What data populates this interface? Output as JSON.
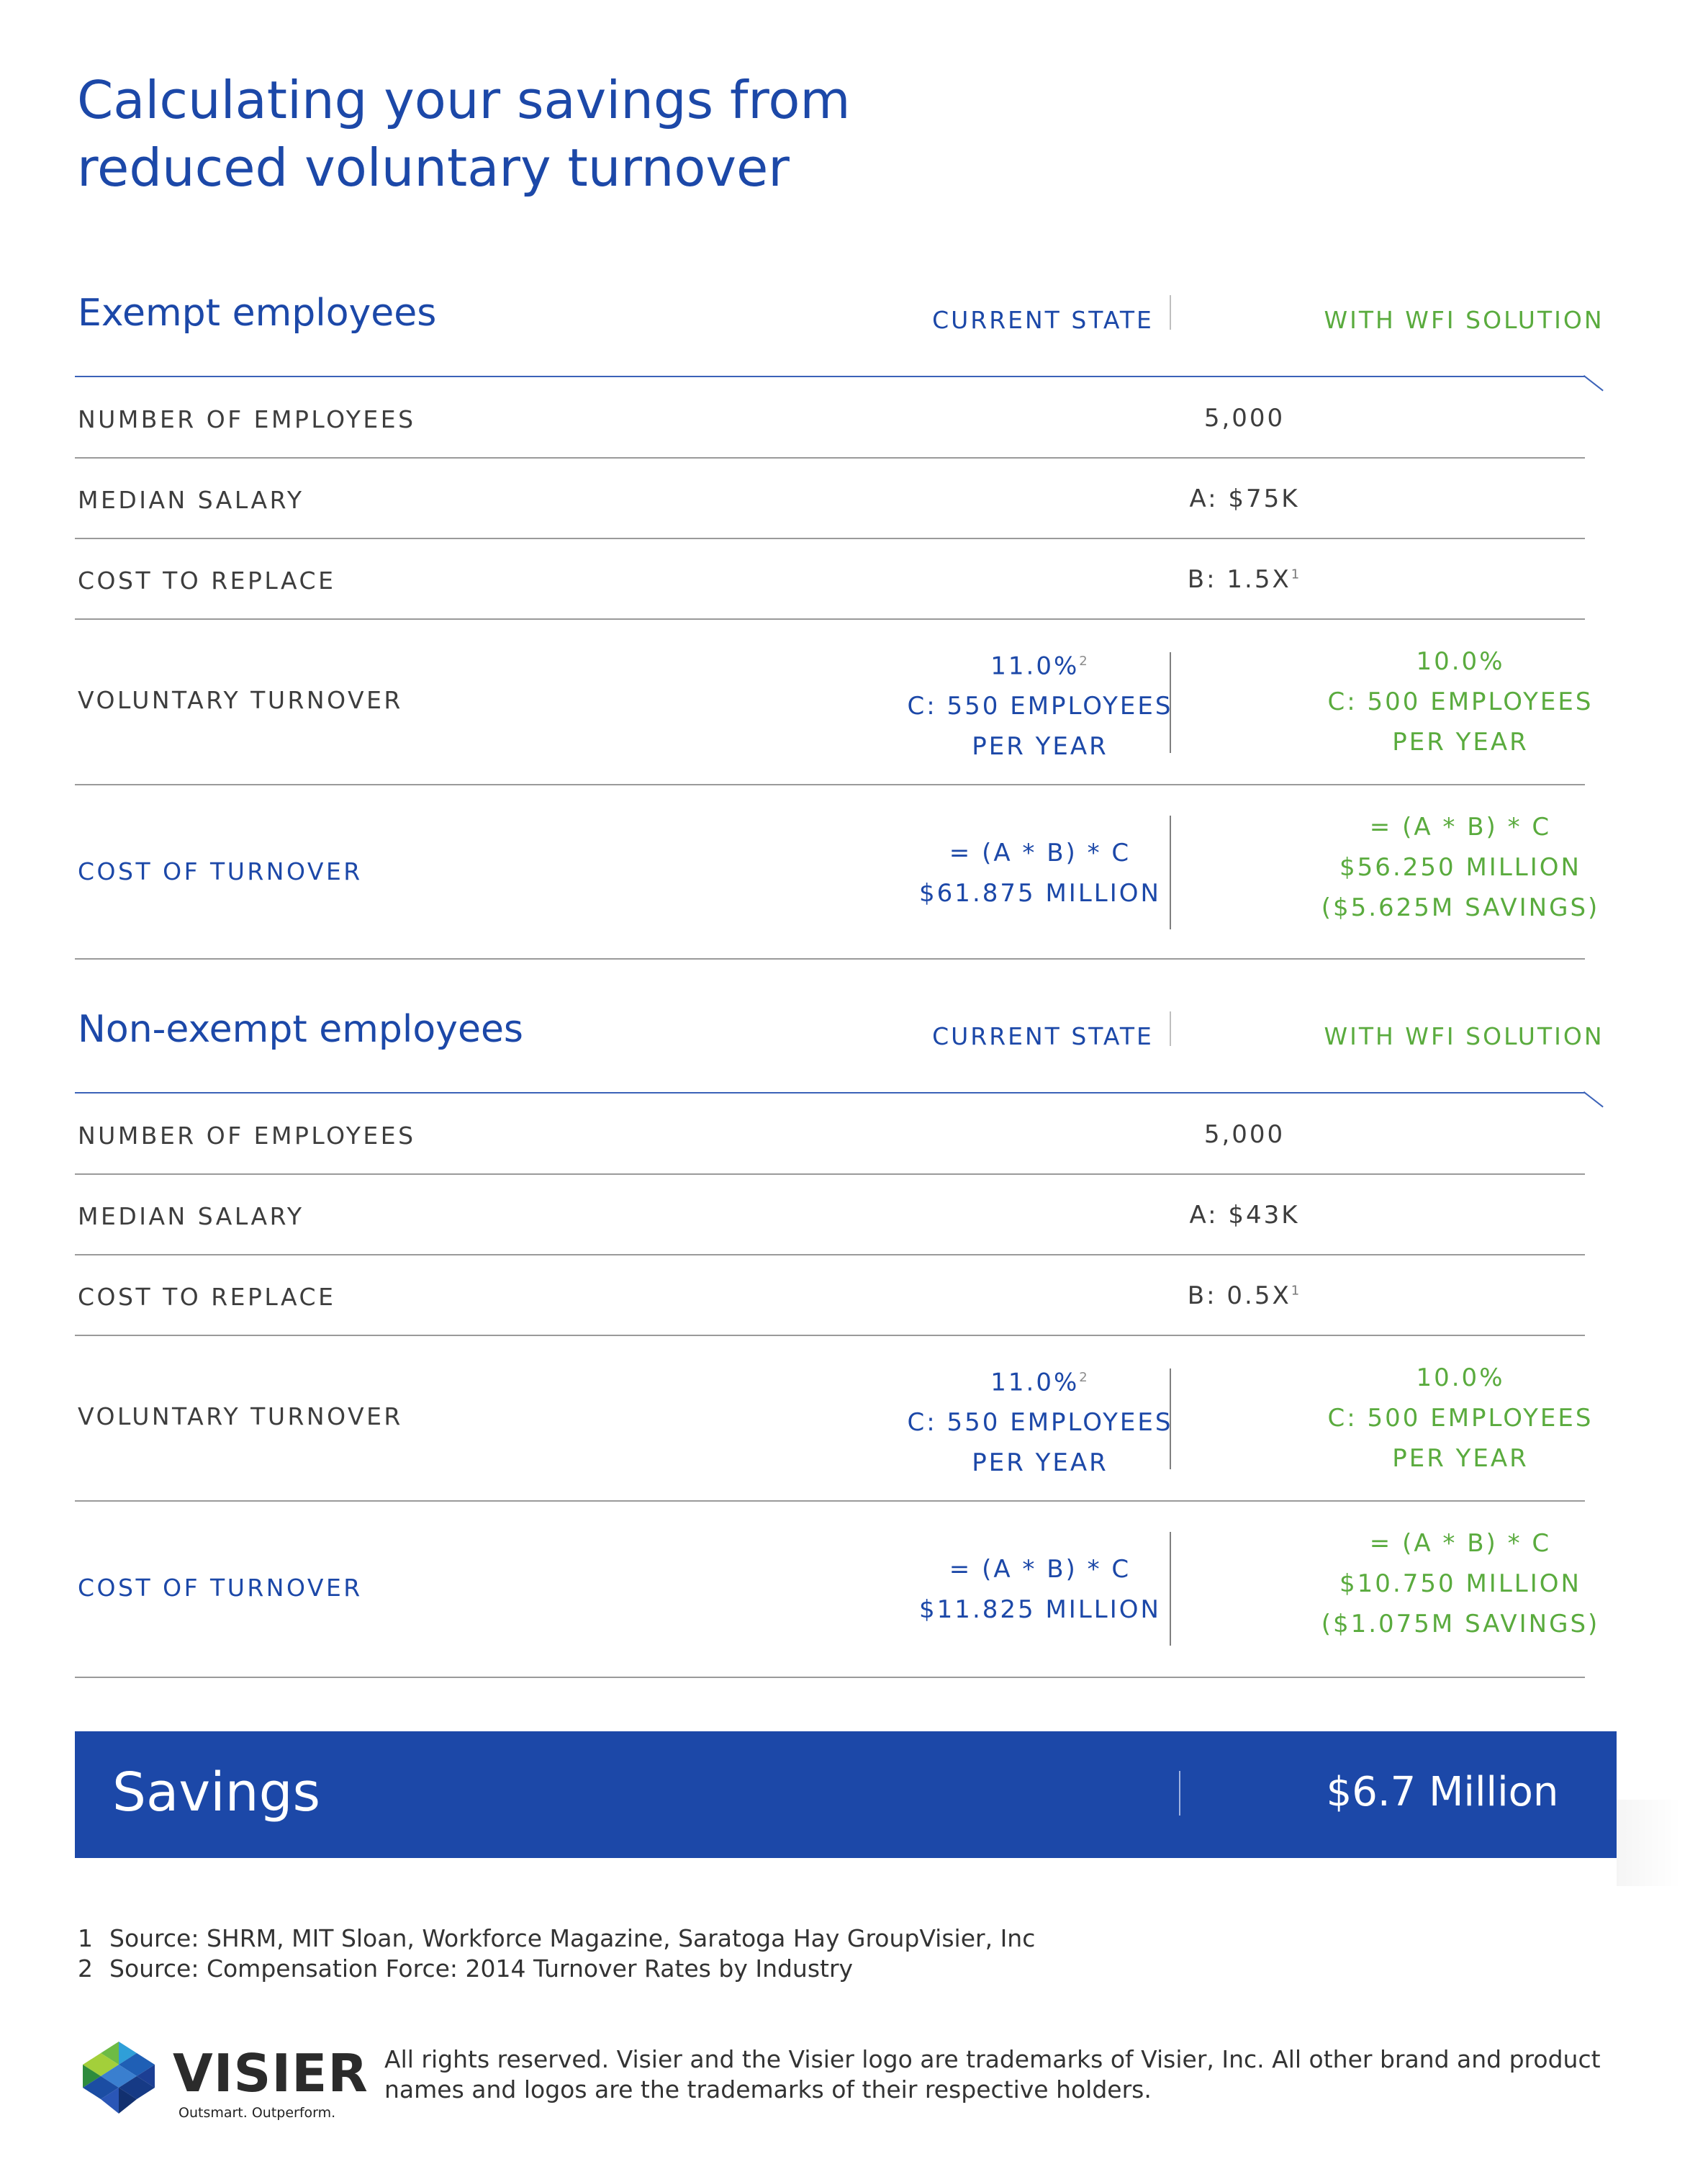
{
  "title_line1": "Calculating your savings from",
  "title_line2": "reduced voluntary turnover",
  "exempt": {
    "heading": "Exempt employees",
    "col_current": "CURRENT STATE",
    "col_wfi": "WITH WFI SOLUTION",
    "rows": {
      "employees": {
        "label": "NUMBER OF EMPLOYEES",
        "value": "5,000"
      },
      "salary": {
        "label": "MEDIAN SALARY",
        "value": "A: $75K"
      },
      "replace": {
        "label": "COST TO REPLACE",
        "value": "B: 1.5X",
        "note": "1"
      },
      "turnover": {
        "label": "VOLUNTARY TURNOVER",
        "current": {
          "rate": "11.0%",
          "note": "2",
          "line2": "C: 550 EMPLOYEES",
          "line3": "PER YEAR"
        },
        "wfi": {
          "rate": "10.0%",
          "line2": "C: 500 EMPLOYEES",
          "line3": "PER YEAR"
        }
      },
      "cost": {
        "label": "COST OF TURNOVER",
        "current": {
          "formula": "= (A * B) * C",
          "amount": "$61.875 MILLION"
        },
        "wfi": {
          "formula": "= (A * B) * C",
          "amount": "$56.250 MILLION",
          "savings": "($5.625M SAVINGS)"
        }
      }
    }
  },
  "nonexempt": {
    "heading": "Non-exempt employees",
    "col_current": "CURRENT STATE",
    "col_wfi": "WITH WFI SOLUTION",
    "rows": {
      "employees": {
        "label": "NUMBER OF EMPLOYEES",
        "value": "5,000"
      },
      "salary": {
        "label": "MEDIAN SALARY",
        "value": "A: $43K"
      },
      "replace": {
        "label": "COST TO REPLACE",
        "value": "B: 0.5X",
        "note": "1"
      },
      "turnover": {
        "label": "VOLUNTARY TURNOVER",
        "current": {
          "rate": "11.0%",
          "note": "2",
          "line2": "C: 550 EMPLOYEES",
          "line3": "PER YEAR"
        },
        "wfi": {
          "rate": "10.0%",
          "line2": "C: 500 EMPLOYEES",
          "line3": "PER YEAR"
        }
      },
      "cost": {
        "label": "COST OF TURNOVER",
        "current": {
          "formula": "= (A * B) * C",
          "amount": "$11.825 MILLION"
        },
        "wfi": {
          "formula": "= (A * B) * C",
          "amount": "$10.750 MILLION",
          "savings": "($1.075M SAVINGS)"
        }
      }
    }
  },
  "savings": {
    "label": "Savings",
    "value": "$6.7 Million"
  },
  "footnotes": [
    {
      "num": "1",
      "text": "Source: SHRM, MIT Sloan, Workforce Magazine, Saratoga Hay GroupVisier, Inc"
    },
    {
      "num": "2",
      "text": "Source: Compensation Force: 2014 Turnover Rates by Industry"
    }
  ],
  "logo": {
    "wordmark": "VISIER",
    "tagline": "Outsmart. Outperform."
  },
  "legal_line1": "All rights reserved. Visier and the Visier logo are trademarks of Visier, Inc. All other brand and product",
  "legal_line2": "names and logos are the trademarks of their respective holders.",
  "colors": {
    "brand_blue": "#1c48a8",
    "wfi_green": "#5aab3e"
  }
}
